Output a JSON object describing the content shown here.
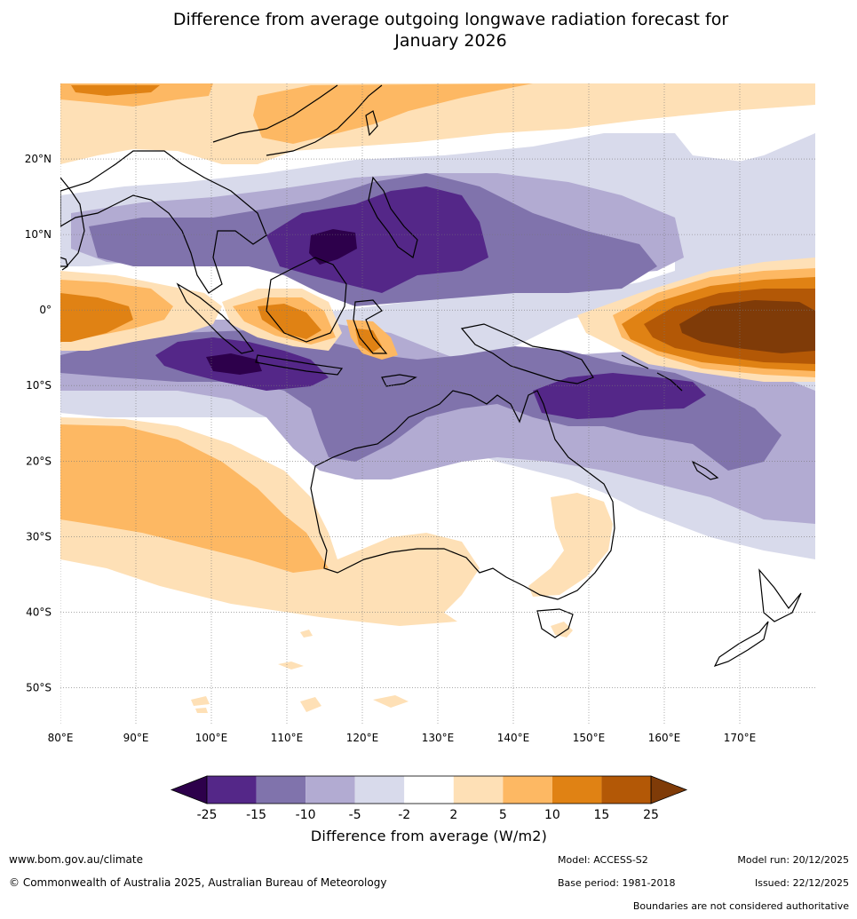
{
  "title": "Difference from average outgoing longwave radiation forecast for\nJanuary 2026",
  "map": {
    "lon_labels": [
      "80°E",
      "90°E",
      "100°E",
      "110°E",
      "120°E",
      "130°E",
      "140°E",
      "150°E",
      "160°E",
      "170°E"
    ],
    "lat_labels": [
      "20°N",
      "10°N",
      "0°",
      "10°S",
      "20°S",
      "30°S",
      "40°S",
      "50°S"
    ],
    "lon_range": [
      80,
      180
    ],
    "lat_range": [
      -55,
      30
    ],
    "regions": [
      "Australia",
      "Indonesia",
      "Philippines",
      "Papua New Guinea",
      "New Zealand",
      "Southeast Asia",
      "China"
    ]
  },
  "colorbar": {
    "title": "Difference from average (W/m2)",
    "tick_labels": [
      "-25",
      "-15",
      "-10",
      "-5",
      "-2",
      "2",
      "5",
      "10",
      "15",
      "25"
    ],
    "colors": [
      "#2d004b",
      "#542788",
      "#8073ac",
      "#b2abd2",
      "#d8daeb",
      "#ffffff",
      "#fee0b6",
      "#fdb863",
      "#e08214",
      "#b35806",
      "#7f3b08"
    ]
  },
  "footer": {
    "website": "www.bom.gov.au/climate",
    "copyright": "© Commonwealth of Australia 2025, Australian Bureau of Meteorology",
    "model": "Model: ACCESS-S2",
    "base_period": "Base period: 1981-2018",
    "model_run": "Model run: 20/12/2025",
    "issued": "Issued: 22/12/2025",
    "disclaimer": "Boundaries are not considered authoritative"
  }
}
